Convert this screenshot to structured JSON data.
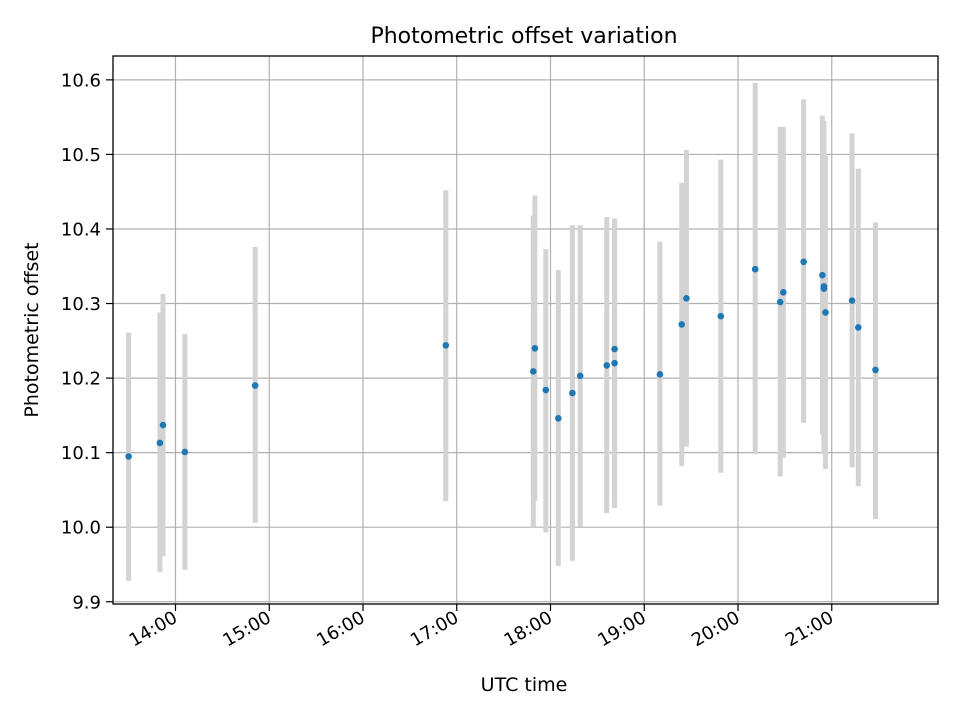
{
  "chart_data": {
    "type": "scatter",
    "title": "Photometric offset variation",
    "xlabel": "UTC time",
    "ylabel": "Photometric offset",
    "x_ticks": [
      "14:00",
      "15:00",
      "16:00",
      "17:00",
      "18:00",
      "19:00",
      "20:00",
      "21:00"
    ],
    "y_ticks": [
      "9.9",
      "10.0",
      "10.1",
      "10.2",
      "10.3",
      "10.4",
      "10.5",
      "10.6"
    ],
    "xlim": [
      "13:20",
      "22:08"
    ],
    "ylim": [
      9.897,
      10.632
    ],
    "grid": true,
    "colors": {
      "point": "#1f77b4",
      "errorbar": "#d3d3d3",
      "grid": "#b0b0b0"
    },
    "points": [
      {
        "t": "13:30",
        "y": 10.095,
        "lo": 9.928,
        "hi": 10.261
      },
      {
        "t": "13:50",
        "y": 10.113,
        "lo": 9.94,
        "hi": 10.288
      },
      {
        "t": "13:52",
        "y": 10.137,
        "lo": 9.961,
        "hi": 10.313
      },
      {
        "t": "14:06",
        "y": 10.101,
        "lo": 9.943,
        "hi": 10.259
      },
      {
        "t": "14:51",
        "y": 10.19,
        "lo": 10.006,
        "hi": 10.376
      },
      {
        "t": "16:53",
        "y": 10.244,
        "lo": 10.035,
        "hi": 10.452
      },
      {
        "t": "17:49",
        "y": 10.209,
        "lo": 10.0,
        "hi": 10.418
      },
      {
        "t": "17:50",
        "y": 10.24,
        "lo": 10.035,
        "hi": 10.445
      },
      {
        "t": "17:57",
        "y": 10.184,
        "lo": 9.993,
        "hi": 10.373
      },
      {
        "t": "18:05",
        "y": 10.146,
        "lo": 9.948,
        "hi": 10.345
      },
      {
        "t": "18:14",
        "y": 10.18,
        "lo": 9.955,
        "hi": 10.405
      },
      {
        "t": "18:19",
        "y": 10.203,
        "lo": 10.001,
        "hi": 10.405
      },
      {
        "t": "18:36",
        "y": 10.217,
        "lo": 10.019,
        "hi": 10.416
      },
      {
        "t": "18:41",
        "y": 10.22,
        "lo": 10.026,
        "hi": 10.414
      },
      {
        "t": "18:41",
        "y": 10.239,
        "lo": 10.05,
        "hi": 10.41
      },
      {
        "t": "19:10",
        "y": 10.205,
        "lo": 10.029,
        "hi": 10.383
      },
      {
        "t": "19:24",
        "y": 10.272,
        "lo": 10.082,
        "hi": 10.462
      },
      {
        "t": "19:27",
        "y": 10.307,
        "lo": 10.108,
        "hi": 10.506
      },
      {
        "t": "19:49",
        "y": 10.283,
        "lo": 10.073,
        "hi": 10.493
      },
      {
        "t": "20:11",
        "y": 10.346,
        "lo": 10.098,
        "hi": 10.596
      },
      {
        "t": "20:27",
        "y": 10.302,
        "lo": 10.068,
        "hi": 10.537
      },
      {
        "t": "20:29",
        "y": 10.315,
        "lo": 10.093,
        "hi": 10.537
      },
      {
        "t": "20:42",
        "y": 10.356,
        "lo": 10.14,
        "hi": 10.574
      },
      {
        "t": "20:54",
        "y": 10.338,
        "lo": 10.124,
        "hi": 10.552
      },
      {
        "t": "20:55",
        "y": 10.32,
        "lo": 10.098,
        "hi": 10.545
      },
      {
        "t": "20:55",
        "y": 10.323,
        "lo": 10.11,
        "hi": 10.535
      },
      {
        "t": "20:56",
        "y": 10.288,
        "lo": 10.078,
        "hi": 10.498
      },
      {
        "t": "21:13",
        "y": 10.304,
        "lo": 10.08,
        "hi": 10.528
      },
      {
        "t": "21:17",
        "y": 10.268,
        "lo": 10.055,
        "hi": 10.481
      },
      {
        "t": "21:28",
        "y": 10.211,
        "lo": 10.011,
        "hi": 10.409
      }
    ]
  }
}
